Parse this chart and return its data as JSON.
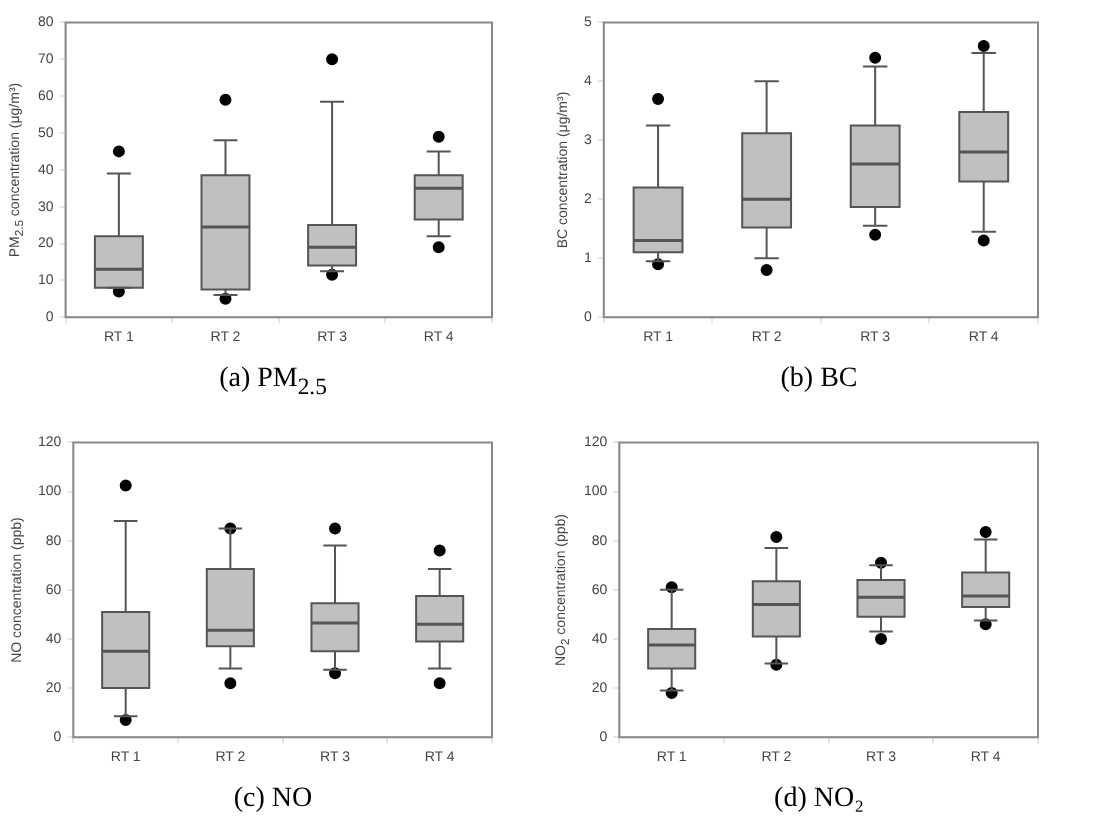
{
  "chart_data": [
    {
      "type": "box",
      "title": "(a)  PM$_{2.5}$",
      "ylabel": "PM$_{2.5}$ concentration (μg/m³)",
      "categories": [
        "RT 1",
        "RT 2",
        "RT 3",
        "RT 4"
      ],
      "ylim": [
        0,
        80
      ],
      "yticks": [
        0,
        10,
        20,
        30,
        40,
        50,
        60,
        70,
        80
      ],
      "series": [
        {
          "color": "#c0c0c0",
          "boxes": [
            {
              "low": 8,
              "q1": 8,
              "median": 13,
              "q3": 22,
              "high": 39,
              "outliers": [
                45,
                7
              ]
            },
            {
              "low": 6,
              "q1": 7.5,
              "median": 24.5,
              "q3": 38.5,
              "high": 48,
              "outliers": [
                59,
                5
              ]
            },
            {
              "low": 12.5,
              "q1": 14,
              "median": 19,
              "q3": 25,
              "high": 58.5,
              "outliers": [
                70,
                11.5
              ]
            },
            {
              "low": 22,
              "q1": 26.5,
              "median": 35,
              "q3": 38.5,
              "high": 45,
              "outliers": [
                49,
                19
              ]
            }
          ]
        }
      ]
    },
    {
      "type": "box",
      "title": "(b)  BC",
      "ylabel": "BC concentration (μg/m³)",
      "categories": [
        "RT 1",
        "RT 2",
        "RT 3",
        "RT 4"
      ],
      "ylim": [
        0,
        5
      ],
      "yticks": [
        0,
        1,
        2,
        3,
        4,
        5
      ],
      "series": [
        {
          "color": "#c0c0c0",
          "boxes": [
            {
              "low": 0.95,
              "q1": 1.1,
              "median": 1.3,
              "q3": 2.2,
              "high": 3.25,
              "outliers": [
                3.7,
                0.9
              ]
            },
            {
              "low": 1.0,
              "q1": 1.52,
              "median": 2.0,
              "q3": 3.12,
              "high": 4.0,
              "outliers": [
                0.8
              ]
            },
            {
              "low": 1.55,
              "q1": 1.87,
              "median": 2.6,
              "q3": 3.25,
              "high": 4.25,
              "outliers": [
                4.4,
                1.4
              ]
            },
            {
              "low": 1.45,
              "q1": 2.3,
              "median": 2.8,
              "q3": 3.48,
              "high": 4.48,
              "outliers": [
                4.6,
                1.3
              ]
            }
          ]
        }
      ]
    },
    {
      "type": "box",
      "title": "(c)  NO",
      "ylabel": "NO concentration (ppb)",
      "categories": [
        "RT 1",
        "RT 2",
        "RT 3",
        "RT 4"
      ],
      "ylim": [
        0,
        120
      ],
      "yticks": [
        0,
        20,
        40,
        60,
        80,
        100,
        120
      ],
      "series": [
        {
          "color": "#c0c0c0",
          "boxes": [
            {
              "low": 8.5,
              "q1": 20,
              "median": 35,
              "q3": 51,
              "high": 88,
              "outliers": [
                102.5,
                7
              ]
            },
            {
              "low": 28,
              "q1": 37,
              "median": 43.5,
              "q3": 68.5,
              "high": 85,
              "outliers": [
                85,
                22
              ]
            },
            {
              "low": 27.5,
              "q1": 35,
              "median": 46.5,
              "q3": 54.5,
              "high": 78,
              "outliers": [
                85,
                26
              ]
            },
            {
              "low": 28,
              "q1": 39,
              "median": 46,
              "q3": 57.5,
              "high": 68.5,
              "outliers": [
                76,
                22
              ]
            }
          ]
        }
      ]
    },
    {
      "type": "box",
      "title": "(d)  NO₂",
      "ylabel": "NO$_{2}$ concentration (ppb)",
      "categories": [
        "RT 1",
        "RT 2",
        "RT 3",
        "RT 4"
      ],
      "ylim": [
        0,
        120
      ],
      "yticks": [
        0,
        20,
        40,
        60,
        80,
        100,
        120
      ],
      "series": [
        {
          "color": "#c0c0c0",
          "boxes": [
            {
              "low": 19,
              "q1": 28,
              "median": 37.5,
              "q3": 44,
              "high": 60,
              "outliers": [
                61,
                18
              ]
            },
            {
              "low": 30,
              "q1": 41,
              "median": 54,
              "q3": 63.5,
              "high": 77,
              "outliers": [
                81.5,
                29.5
              ]
            },
            {
              "low": 43,
              "q1": 49,
              "median": 57,
              "q3": 64,
              "high": 70,
              "outliers": [
                71,
                40
              ]
            },
            {
              "low": 47.5,
              "q1": 53,
              "median": 57.5,
              "q3": 67,
              "high": 80.5,
              "outliers": [
                83.5,
                46
              ]
            }
          ]
        }
      ]
    }
  ]
}
